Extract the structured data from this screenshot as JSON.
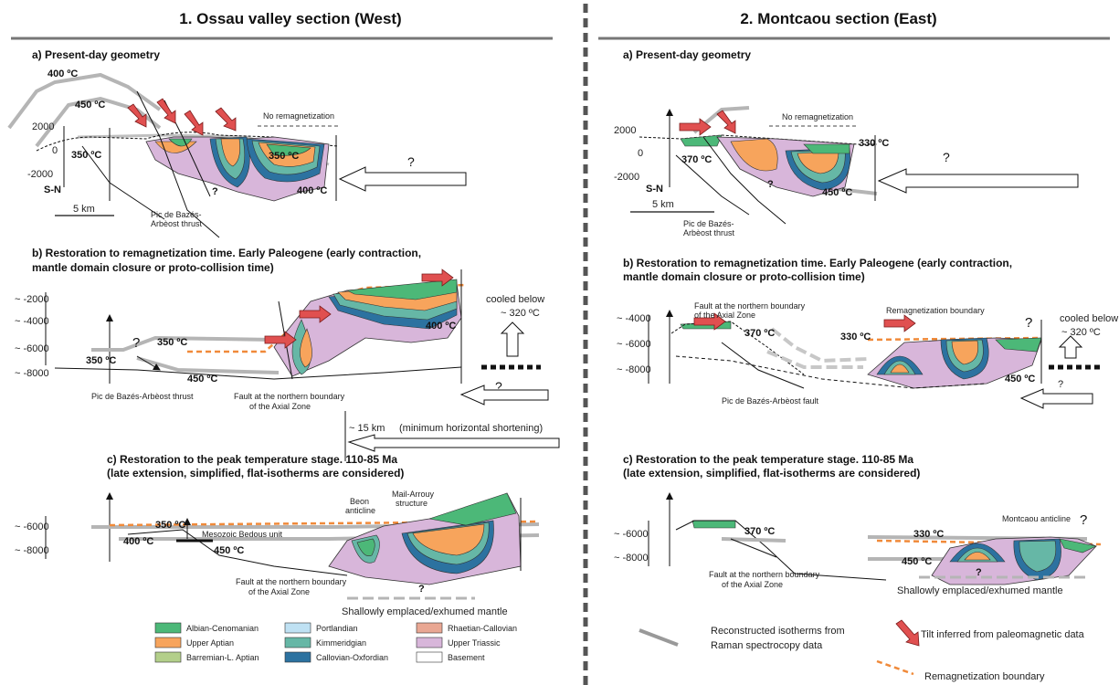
{
  "titles": {
    "west": "1. Ossau valley section (West)",
    "east": "2. Montcaou section (East)"
  },
  "west": {
    "a": {
      "title": "a) Present-day geometry",
      "iso400": "400 ºC",
      "iso450": "450 ºC",
      "iso350": "350 ºC",
      "iso350b": "350 ºC",
      "iso400b": "400 ºC",
      "no_remag": "No remagnetization",
      "y2000": "2000",
      "y0": "0",
      "yn2000": "-2000",
      "sn": "S-N",
      "scale": "5 km",
      "q1": "?",
      "q2": "?",
      "thrust1": "Pic de Bazés-",
      "thrust2": "Arbèost thrust"
    },
    "b": {
      "title1": "b) Restoration to remagnetization time. Early Paleogene (early contraction,",
      "title2": "mantle domain closure or proto-collision time)",
      "y1": "~ -2000",
      "y2": "~ -4000",
      "y3": "~ -6000",
      "y4": "~ -8000",
      "iso350": "350 ºC",
      "iso350b": "350 ºC",
      "iso450": "450 ºC",
      "iso400": "400 ºC",
      "q1": "?",
      "q2": "?",
      "cooled1": "cooled below",
      "cooled2": "~ 320 ºC",
      "thrust": "Pic de Bazés-Arbèost thrust",
      "fault1": "Fault at the northern boundary",
      "fault2": "of the Axial Zone",
      "shortening_km": "~ 15 km",
      "shortening_note": "(minimum horizontal shortening)"
    },
    "c": {
      "title1": "c) Restoration to the peak temperature stage. 110-85 Ma",
      "title2": "(late extension, simplified, flat-isotherms are considered)",
      "y1": "~ -6000",
      "y2": "~ -8000",
      "iso350": "350 ºC",
      "iso400": "400 ºC",
      "iso450": "450 ºC",
      "bedous": "Mesozoic Bedous unit",
      "beon1": "Beon",
      "beon2": "anticline",
      "mail1": "Mail-Arrouy",
      "mail2": "structure",
      "fault1": "Fault at the northern boundary",
      "fault2": "of the Axial Zone",
      "mantle": "Shallowly emplaced/exhumed mantle",
      "q": "?"
    }
  },
  "east": {
    "a": {
      "title": "a) Present-day geometry",
      "y2000": "2000",
      "y0": "0",
      "yn2000": "-2000",
      "no_remag": "No remagnetization",
      "iso330": "330 ºC",
      "iso370": "370 ºC",
      "iso450": "450 ºC",
      "sn": "S-N",
      "scale": "5 km",
      "q1": "?",
      "q2": "?",
      "thrust1": "Pic de Bazés-",
      "thrust2": "Arbèost thrust"
    },
    "b": {
      "title1": "b) Restoration to remagnetization time. Early Paleogene (early contraction,",
      "title2": "mantle domain closure or proto-collision time)",
      "y1": "~ -4000",
      "y2": "~ -6000",
      "y3": "~ -8000",
      "fault1": "Fault at the northern boundary",
      "fault2": "of the Axial Zone",
      "remag": "Remagnetization boundary",
      "iso370": "370 ºC",
      "iso330": "330 ºC",
      "iso450": "450 ºC",
      "q1": "?",
      "q2": "?",
      "cooled1": "cooled below",
      "cooled2": "~ 320 ºC",
      "fault": "Pic de Bazés-Arbèost fault"
    },
    "c": {
      "title1": "c) Restoration to the peak temperature stage. 110-85 Ma",
      "title2": "(late extension, simplified, flat-isotherms are considered)",
      "y1": "~ -6000",
      "y2": "~ -8000",
      "iso370": "370 ºC",
      "iso330": "330 ºC",
      "iso450": "450 ºC",
      "montcaou": "Montcaou anticline",
      "fault1": "Fault at the northern boundary",
      "fault2": "of the Axial Zone",
      "mantle": "Shallowly emplaced/exhumed mantle",
      "q1": "?",
      "q2": "?"
    }
  },
  "legend": {
    "units": [
      {
        "label": "Albian-Cenomanian",
        "color": "#4cb878"
      },
      {
        "label": "Upper Aptian",
        "color": "#f7a45c"
      },
      {
        "label": "Barremian-L. Aptian",
        "color": "#b3cf8a"
      },
      {
        "label": "Portlandian",
        "color": "#bfe1f3"
      },
      {
        "label": "Kimmeridgian",
        "color": "#66b7a6"
      },
      {
        "label": "Callovian-Oxfordian",
        "color": "#2c72a0"
      },
      {
        "label": "Rhaetian-Callovian",
        "color": "#e9a793"
      },
      {
        "label": "Upper Triassic",
        "color": "#d8b6da"
      },
      {
        "label": "Basement",
        "color": "#ffffff"
      }
    ],
    "iso1": "Reconstructed isotherms from",
    "iso2": "Raman spectrocopy data",
    "tilt": "Tilt inferred from paleomagnetic data",
    "remag": "Remagnetization boundary"
  }
}
